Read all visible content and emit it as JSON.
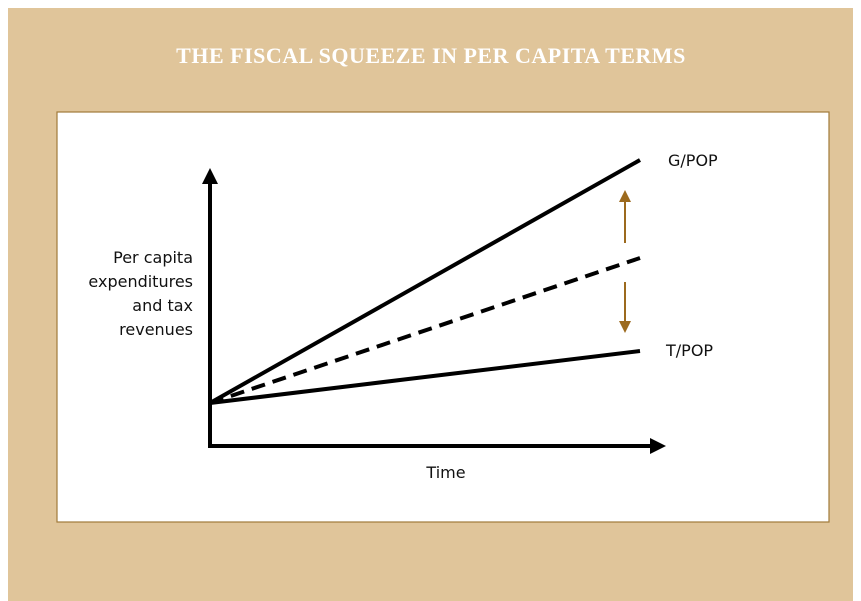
{
  "title": "THE FISCAL SQUEEZE IN PER CAPITA TERMS",
  "y_axis_label": [
    "Per capita",
    "expenditures",
    "and tax",
    "revenues"
  ],
  "x_axis_label": "Time",
  "lines": [
    {
      "label": "G/POP"
    },
    {
      "label": "T/POP"
    }
  ]
}
